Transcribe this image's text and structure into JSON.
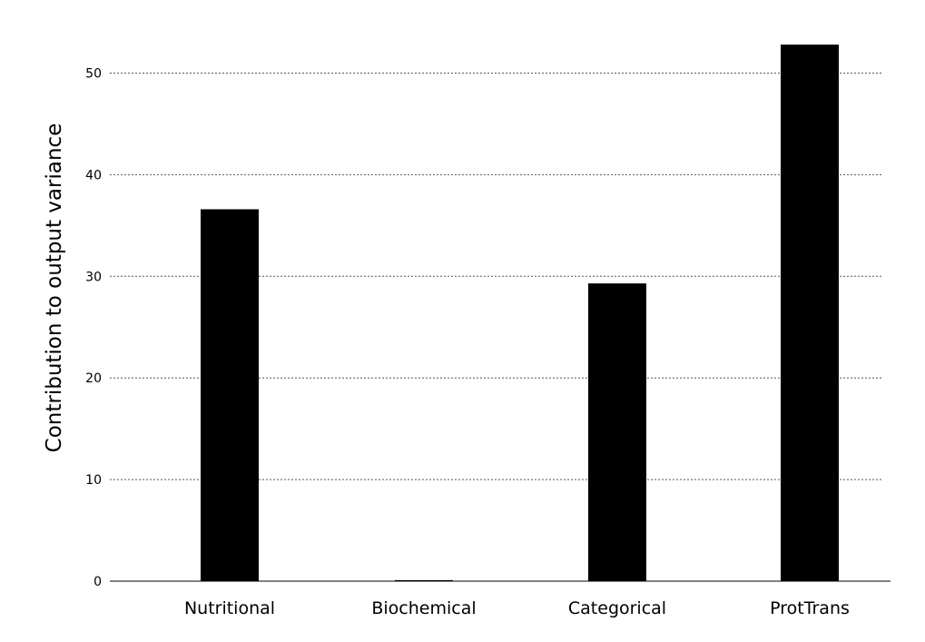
{
  "chart_data": {
    "type": "bar",
    "categories": [
      "Nutritional",
      "Biochemical",
      "Categorical",
      "ProtTrans"
    ],
    "values": [
      36.6,
      0.1,
      29.3,
      52.8
    ],
    "title": "",
    "xlabel": "",
    "ylabel": "Contribution to output variance",
    "ylim": [
      0,
      55
    ],
    "yticks": [
      0,
      10,
      20,
      30,
      40,
      50
    ],
    "grid": "y-dotted",
    "bar_color": "#000000"
  }
}
